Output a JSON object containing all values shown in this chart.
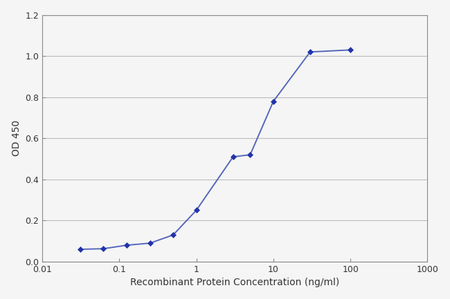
{
  "x": [
    0.031,
    0.062,
    0.125,
    0.25,
    0.5,
    1.0,
    3.0,
    5.0,
    10.0,
    30.0,
    100.0
  ],
  "y": [
    0.06,
    0.063,
    0.08,
    0.09,
    0.13,
    0.25,
    0.51,
    0.52,
    0.78,
    1.02,
    1.03
  ],
  "line_color": "#5566bb",
  "marker_color": "#2233aa",
  "marker_style": "D",
  "marker_size": 4.5,
  "line_width": 1.4,
  "xlabel": "Recombinant Protein Concentration (ng/ml)",
  "ylabel": "OD 450",
  "ylim": [
    0,
    1.2
  ],
  "yticks": [
    0,
    0.2,
    0.4,
    0.6,
    0.8,
    1.0,
    1.2
  ],
  "xticks": [
    0.01,
    0.1,
    1,
    10,
    100,
    1000
  ],
  "xtick_labels": [
    "0.01",
    "0.1",
    "1",
    "10",
    "100",
    "1000"
  ],
  "xlim_log": [
    0.01,
    1000
  ],
  "xlabel_fontsize": 10,
  "ylabel_fontsize": 10,
  "tick_fontsize": 9,
  "background_color": "#f5f5f5",
  "plot_bg_color": "#f5f5f5",
  "grid_color": "#bbbbbb",
  "grid_alpha": 1.0,
  "grid_linewidth": 0.8
}
